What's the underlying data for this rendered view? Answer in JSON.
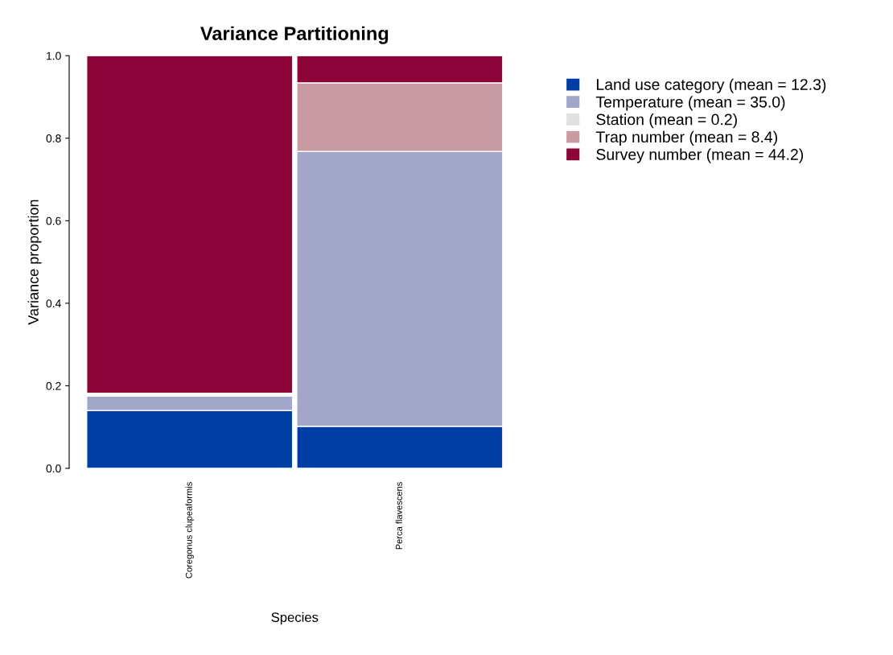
{
  "chart_data": {
    "type": "bar",
    "title": "Variance Partitioning",
    "xlabel": "Species",
    "ylabel": "Variance proportion",
    "categories": [
      "Coregonus clupeaformis",
      "Perca flavescens"
    ],
    "stacked": true,
    "ylim": [
      0,
      1
    ],
    "yticks": [
      {
        "value": 0,
        "label": "0.0"
      },
      {
        "value": 0.2,
        "label": "0.2"
      },
      {
        "value": 0.4,
        "label": "0.4"
      },
      {
        "value": 0.6,
        "label": "0.6"
      },
      {
        "value": 0.8,
        "label": "0.8"
      },
      {
        "value": 1,
        "label": "1.0"
      }
    ],
    "grid": false,
    "legend": "right",
    "series": [
      {
        "name": "Land use category (mean = 12.3)",
        "color": "#003da5",
        "values": [
          0.14,
          0.102
        ]
      },
      {
        "name": "Temperature (mean = 35.0)",
        "color": "#a2a6c9",
        "values": [
          0.035,
          0.666
        ]
      },
      {
        "name": "Station (mean = 0.2)",
        "color": "#e0e0e0",
        "values": [
          0.004,
          0.0
        ]
      },
      {
        "name": "Trap number (mean = 8.4)",
        "color": "#c89ba3",
        "values": [
          0.003,
          0.166
        ]
      },
      {
        "name": "Survey number (mean = 44.2)",
        "color": "#8b0538",
        "values": [
          0.818,
          0.066
        ]
      }
    ]
  }
}
